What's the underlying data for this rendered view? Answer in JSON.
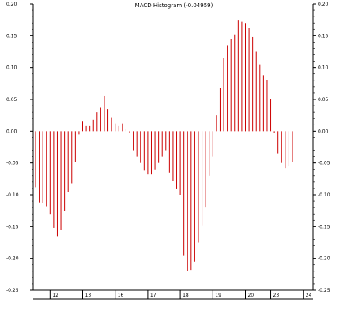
{
  "chart_data": {
    "type": "bar",
    "title": "MACD Histogram (-0.04959)",
    "xlabel": "",
    "ylabel": "",
    "ylim": [
      -0.25,
      0.2
    ],
    "y_ticks": [
      0.2,
      0.15,
      0.1,
      0.05,
      0.0,
      -0.05,
      -0.1,
      -0.15,
      -0.2,
      -0.25
    ],
    "y_tick_labels": [
      "0.20",
      "0.15",
      "0.10",
      "0.05",
      "0.00",
      "-0.05",
      "-0.10",
      "-0.15",
      "-0.20",
      "-0.25"
    ],
    "x_tick_labels": [
      "12",
      "13",
      "16",
      "17",
      "18",
      "19",
      "20",
      "23",
      "24"
    ],
    "x_tick_index": [
      4,
      13,
      22,
      31,
      40,
      49,
      58,
      65,
      74
    ],
    "bar_color": "#cc0000",
    "grid": false,
    "values": [
      -0.088,
      -0.112,
      -0.113,
      -0.118,
      -0.13,
      -0.152,
      -0.165,
      -0.155,
      -0.125,
      -0.096,
      -0.082,
      -0.048,
      -0.005,
      0.015,
      0.008,
      0.008,
      0.018,
      0.03,
      0.037,
      0.055,
      0.035,
      0.022,
      0.012,
      0.008,
      0.012,
      0.004,
      -0.003,
      -0.03,
      -0.04,
      -0.05,
      -0.062,
      -0.068,
      -0.068,
      -0.06,
      -0.05,
      -0.04,
      -0.03,
      -0.065,
      -0.078,
      -0.09,
      -0.1,
      -0.195,
      -0.22,
      -0.218,
      -0.205,
      -0.175,
      -0.148,
      -0.12,
      -0.07,
      -0.04,
      0.025,
      0.068,
      0.115,
      0.135,
      0.145,
      0.152,
      0.175,
      0.172,
      0.17,
      0.162,
      0.148,
      0.125,
      0.105,
      0.088,
      0.08,
      0.05,
      -0.003,
      -0.035,
      -0.05,
      -0.058,
      -0.055,
      -0.048
    ]
  }
}
